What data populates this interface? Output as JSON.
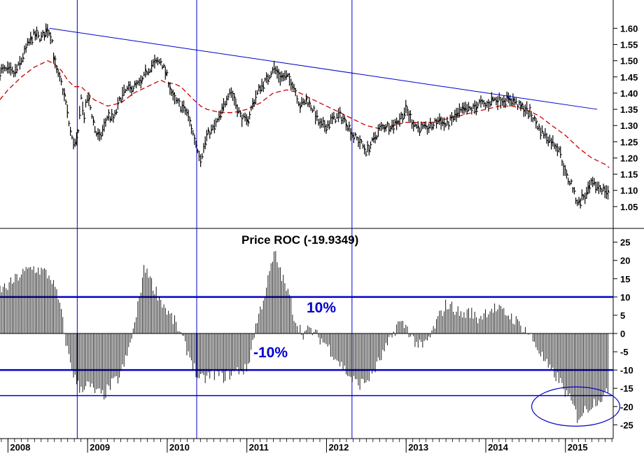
{
  "colors": {
    "price": "#000000",
    "moving_average": "#cc0000",
    "trendline": "#0000cc",
    "band": "#0000cc",
    "year_marker": "#0000cc",
    "band_label": "#0000cc",
    "roc_bar": "#000000"
  },
  "chart_data": [
    {
      "type": "line",
      "panel": "price",
      "x_unit": "year",
      "x_ticks": [
        "2008",
        "2009",
        "2010",
        "2011",
        "2012",
        "2013",
        "2014",
        "2015"
      ],
      "xlim": [
        2007.9,
        2015.6
      ],
      "ylim": [
        1.0,
        1.67
      ],
      "y_ticks": [
        "1.05",
        "1.10",
        "1.15",
        "1.20",
        "1.25",
        "1.30",
        "1.35",
        "1.40",
        "1.45",
        "1.50",
        "1.55",
        "1.60"
      ],
      "price_series": [
        [
          2007.9,
          1.47
        ],
        [
          2008.0,
          1.47
        ],
        [
          2008.08,
          1.46
        ],
        [
          2008.15,
          1.49
        ],
        [
          2008.25,
          1.55
        ],
        [
          2008.33,
          1.58
        ],
        [
          2008.42,
          1.57
        ],
        [
          2008.5,
          1.6
        ],
        [
          2008.55,
          1.57
        ],
        [
          2008.58,
          1.5
        ],
        [
          2008.62,
          1.46
        ],
        [
          2008.67,
          1.43
        ],
        [
          2008.72,
          1.38
        ],
        [
          2008.77,
          1.3
        ],
        [
          2008.8,
          1.26
        ],
        [
          2008.85,
          1.24
        ],
        [
          2008.88,
          1.27
        ],
        [
          2008.92,
          1.4
        ],
        [
          2008.95,
          1.32
        ],
        [
          2009.0,
          1.39
        ],
        [
          2009.05,
          1.34
        ],
        [
          2009.1,
          1.28
        ],
        [
          2009.15,
          1.26
        ],
        [
          2009.2,
          1.29
        ],
        [
          2009.25,
          1.33
        ],
        [
          2009.33,
          1.32
        ],
        [
          2009.42,
          1.39
        ],
        [
          2009.5,
          1.41
        ],
        [
          2009.58,
          1.42
        ],
        [
          2009.67,
          1.43
        ],
        [
          2009.75,
          1.47
        ],
        [
          2009.83,
          1.49
        ],
        [
          2009.92,
          1.5
        ],
        [
          2010.0,
          1.45
        ],
        [
          2010.08,
          1.38
        ],
        [
          2010.17,
          1.36
        ],
        [
          2010.25,
          1.34
        ],
        [
          2010.33,
          1.27
        ],
        [
          2010.38,
          1.23
        ],
        [
          2010.42,
          1.2
        ],
        [
          2010.46,
          1.23
        ],
        [
          2010.5,
          1.27
        ],
        [
          2010.58,
          1.29
        ],
        [
          2010.67,
          1.33
        ],
        [
          2010.75,
          1.39
        ],
        [
          2010.79,
          1.41
        ],
        [
          2010.83,
          1.39
        ],
        [
          2010.92,
          1.33
        ],
        [
          2011.0,
          1.31
        ],
        [
          2011.08,
          1.37
        ],
        [
          2011.17,
          1.42
        ],
        [
          2011.25,
          1.44
        ],
        [
          2011.33,
          1.48
        ],
        [
          2011.42,
          1.45
        ],
        [
          2011.5,
          1.45
        ],
        [
          2011.58,
          1.43
        ],
        [
          2011.67,
          1.36
        ],
        [
          2011.75,
          1.38
        ],
        [
          2011.83,
          1.35
        ],
        [
          2011.92,
          1.3
        ],
        [
          2012.0,
          1.3
        ],
        [
          2012.08,
          1.32
        ],
        [
          2012.17,
          1.33
        ],
        [
          2012.25,
          1.31
        ],
        [
          2012.33,
          1.27
        ],
        [
          2012.42,
          1.25
        ],
        [
          2012.5,
          1.22
        ],
        [
          2012.58,
          1.25
        ],
        [
          2012.67,
          1.29
        ],
        [
          2012.75,
          1.3
        ],
        [
          2012.83,
          1.3
        ],
        [
          2012.92,
          1.32
        ],
        [
          2013.0,
          1.35
        ],
        [
          2013.08,
          1.31
        ],
        [
          2013.17,
          1.29
        ],
        [
          2013.25,
          1.29
        ],
        [
          2013.33,
          1.3
        ],
        [
          2013.42,
          1.32
        ],
        [
          2013.5,
          1.3
        ],
        [
          2013.58,
          1.32
        ],
        [
          2013.67,
          1.34
        ],
        [
          2013.75,
          1.35
        ],
        [
          2013.83,
          1.35
        ],
        [
          2013.92,
          1.37
        ],
        [
          2014.0,
          1.36
        ],
        [
          2014.08,
          1.38
        ],
        [
          2014.17,
          1.38
        ],
        [
          2014.25,
          1.38
        ],
        [
          2014.33,
          1.38
        ],
        [
          2014.42,
          1.36
        ],
        [
          2014.5,
          1.35
        ],
        [
          2014.58,
          1.33
        ],
        [
          2014.67,
          1.29
        ],
        [
          2014.75,
          1.27
        ],
        [
          2014.83,
          1.25
        ],
        [
          2014.92,
          1.23
        ],
        [
          2015.0,
          1.15
        ],
        [
          2015.04,
          1.13
        ],
        [
          2015.08,
          1.12
        ],
        [
          2015.12,
          1.08
        ],
        [
          2015.17,
          1.06
        ],
        [
          2015.21,
          1.08
        ],
        [
          2015.25,
          1.08
        ],
        [
          2015.33,
          1.12
        ],
        [
          2015.42,
          1.11
        ],
        [
          2015.5,
          1.1
        ],
        [
          2015.55,
          1.09
        ]
      ],
      "moving_average": [
        [
          2007.9,
          1.38
        ],
        [
          2008.0,
          1.41
        ],
        [
          2008.17,
          1.45
        ],
        [
          2008.33,
          1.48
        ],
        [
          2008.5,
          1.5
        ],
        [
          2008.58,
          1.49
        ],
        [
          2008.67,
          1.47
        ],
        [
          2008.75,
          1.44
        ],
        [
          2008.83,
          1.42
        ],
        [
          2008.92,
          1.42
        ],
        [
          2009.0,
          1.4
        ],
        [
          2009.08,
          1.38
        ],
        [
          2009.25,
          1.36
        ],
        [
          2009.42,
          1.37
        ],
        [
          2009.58,
          1.4
        ],
        [
          2009.75,
          1.42
        ],
        [
          2009.92,
          1.44
        ],
        [
          2010.0,
          1.43
        ],
        [
          2010.08,
          1.43
        ],
        [
          2010.17,
          1.42
        ],
        [
          2010.33,
          1.38
        ],
        [
          2010.42,
          1.36
        ],
        [
          2010.5,
          1.35
        ],
        [
          2010.67,
          1.34
        ],
        [
          2010.83,
          1.34
        ],
        [
          2011.0,
          1.35
        ],
        [
          2011.17,
          1.37
        ],
        [
          2011.33,
          1.4
        ],
        [
          2011.5,
          1.41
        ],
        [
          2011.67,
          1.4
        ],
        [
          2011.83,
          1.38
        ],
        [
          2012.0,
          1.36
        ],
        [
          2012.17,
          1.34
        ],
        [
          2012.33,
          1.32
        ],
        [
          2012.5,
          1.3
        ],
        [
          2012.67,
          1.29
        ],
        [
          2012.83,
          1.3
        ],
        [
          2013.0,
          1.31
        ],
        [
          2013.17,
          1.31
        ],
        [
          2013.33,
          1.31
        ],
        [
          2013.5,
          1.32
        ],
        [
          2013.67,
          1.33
        ],
        [
          2013.83,
          1.34
        ],
        [
          2014.0,
          1.35
        ],
        [
          2014.17,
          1.36
        ],
        [
          2014.33,
          1.36
        ],
        [
          2014.5,
          1.35
        ],
        [
          2014.67,
          1.33
        ],
        [
          2014.83,
          1.3
        ],
        [
          2015.0,
          1.27
        ],
        [
          2015.17,
          1.23
        ],
        [
          2015.33,
          1.2
        ],
        [
          2015.5,
          1.18
        ],
        [
          2015.55,
          1.17
        ]
      ],
      "trendline": [
        [
          2008.52,
          1.6
        ],
        [
          2015.4,
          1.35
        ]
      ],
      "year_markers": [
        2008.87,
        2010.37,
        2012.32
      ]
    },
    {
      "type": "bar",
      "panel": "indicator",
      "title": "Price ROC (-19.9349)",
      "ylim": [
        -28,
        28
      ],
      "y_ticks": [
        "25",
        "20",
        "15",
        "10",
        "5",
        "0",
        "-5",
        "-10",
        "-15",
        "-20",
        "-25"
      ],
      "bands": [
        10,
        -10,
        -17
      ],
      "band_labels": [
        "10%",
        "-10%"
      ],
      "roc_profile": [
        [
          2007.9,
          12
        ],
        [
          2008.0,
          13
        ],
        [
          2008.15,
          16
        ],
        [
          2008.3,
          18
        ],
        [
          2008.45,
          17
        ],
        [
          2008.55,
          15
        ],
        [
          2008.65,
          8
        ],
        [
          2008.75,
          -5
        ],
        [
          2008.85,
          -13
        ],
        [
          2008.9,
          -15
        ],
        [
          2009.0,
          -14
        ],
        [
          2009.1,
          -16
        ],
        [
          2009.2,
          -17
        ],
        [
          2009.3,
          -14
        ],
        [
          2009.4,
          -12
        ],
        [
          2009.5,
          -6
        ],
        [
          2009.55,
          -1
        ],
        [
          2009.6,
          3
        ],
        [
          2009.65,
          10
        ],
        [
          2009.7,
          17
        ],
        [
          2009.75,
          18
        ],
        [
          2009.8,
          14
        ],
        [
          2009.9,
          10
        ],
        [
          2010.0,
          6
        ],
        [
          2010.1,
          3
        ],
        [
          2010.2,
          -2
        ],
        [
          2010.3,
          -7
        ],
        [
          2010.4,
          -13
        ],
        [
          2010.5,
          -12
        ],
        [
          2010.6,
          -11
        ],
        [
          2010.7,
          -12
        ],
        [
          2010.8,
          -11
        ],
        [
          2010.9,
          -10
        ],
        [
          2011.0,
          -10
        ],
        [
          2011.05,
          -5
        ],
        [
          2011.1,
          1
        ],
        [
          2011.15,
          5
        ],
        [
          2011.2,
          9
        ],
        [
          2011.25,
          13
        ],
        [
          2011.3,
          18
        ],
        [
          2011.35,
          22
        ],
        [
          2011.45,
          15
        ],
        [
          2011.55,
          9
        ],
        [
          2011.6,
          4
        ],
        [
          2011.7,
          0
        ],
        [
          2011.8,
          1
        ],
        [
          2011.9,
          -1
        ],
        [
          2012.0,
          -3
        ],
        [
          2012.1,
          -6
        ],
        [
          2012.2,
          -9
        ],
        [
          2012.3,
          -12
        ],
        [
          2012.4,
          -14
        ],
        [
          2012.5,
          -13
        ],
        [
          2012.6,
          -10
        ],
        [
          2012.7,
          -6
        ],
        [
          2012.8,
          -2
        ],
        [
          2012.9,
          3
        ],
        [
          2013.0,
          2
        ],
        [
          2013.1,
          -2
        ],
        [
          2013.2,
          -4
        ],
        [
          2013.3,
          -1
        ],
        [
          2013.4,
          4
        ],
        [
          2013.5,
          8
        ],
        [
          2013.6,
          7
        ],
        [
          2013.7,
          5
        ],
        [
          2013.8,
          6
        ],
        [
          2013.9,
          4
        ],
        [
          2014.0,
          6
        ],
        [
          2014.1,
          7
        ],
        [
          2014.2,
          6
        ],
        [
          2014.3,
          5
        ],
        [
          2014.4,
          3
        ],
        [
          2014.5,
          1
        ],
        [
          2014.6,
          -2
        ],
        [
          2014.7,
          -6
        ],
        [
          2014.8,
          -10
        ],
        [
          2014.9,
          -12
        ],
        [
          2015.0,
          -16
        ],
        [
          2015.1,
          -20
        ],
        [
          2015.15,
          -23
        ],
        [
          2015.2,
          -22
        ],
        [
          2015.3,
          -20
        ],
        [
          2015.4,
          -18
        ],
        [
          2015.5,
          -17
        ],
        [
          2015.55,
          -16
        ]
      ],
      "highlight_ellipse": {
        "x": 2015.13,
        "y": -20
      }
    }
  ]
}
